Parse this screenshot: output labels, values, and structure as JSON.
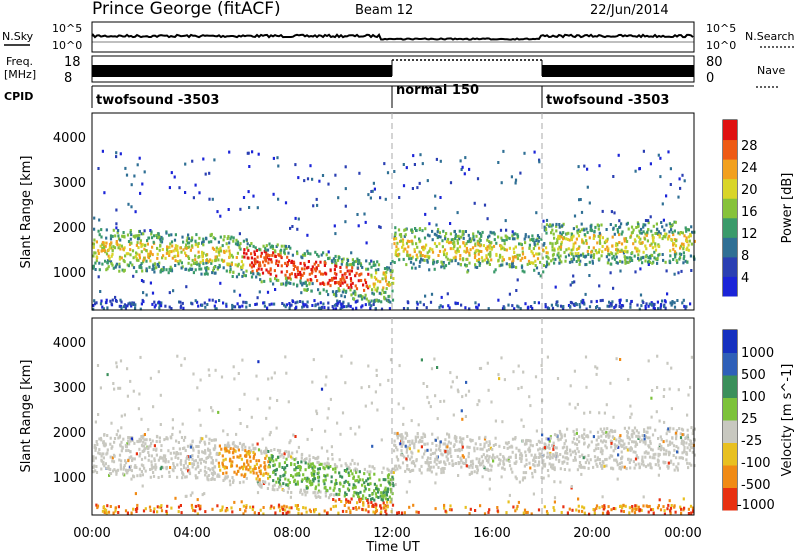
{
  "header": {
    "station": "Prince George (fitACF)",
    "beam": "Beam 12",
    "date": "22/Jun/2014"
  },
  "chart_data": [
    {
      "type": "line",
      "name": "noise-panel",
      "left_label": "N.Sky",
      "right_label": "N.Search",
      "left_ticks": [
        "10^5",
        "10^0"
      ],
      "right_ticks": [
        "10^5",
        "10^0"
      ]
    },
    {
      "type": "line",
      "name": "frequency-panel",
      "left_label_top": "Freq.",
      "left_label_unit": "[MHz]",
      "right_label": "Nave",
      "left_ticks": [
        "18",
        "8"
      ],
      "right_ticks": [
        "80",
        "0"
      ]
    },
    {
      "type": "table",
      "name": "cpid-panel",
      "label": "CPID",
      "segments": [
        {
          "start_hour": 0,
          "end_hour": 12,
          "text": "twofsound -3503"
        },
        {
          "start_hour": 12,
          "end_hour": 18,
          "text": "normal 150"
        },
        {
          "start_hour": 18,
          "end_hour": 24,
          "text": "twofsound -3503"
        }
      ]
    },
    {
      "type": "heatmap",
      "name": "power-panel",
      "ylabel": "Slant Range [km]",
      "ylim": [
        200,
        4500
      ],
      "yticks": [
        "1000",
        "2000",
        "3000",
        "4000"
      ],
      "colorbar_label": "Power [dB]",
      "colorbar_ticks": [
        "28",
        "24",
        "20",
        "16",
        "12",
        "8",
        "4"
      ],
      "colors": [
        "#1b24d8",
        "#2a3fb3",
        "#2f6f94",
        "#3a9a6a",
        "#86c23a",
        "#d9d528",
        "#f2a01e",
        "#ee5a14",
        "#e01010"
      ]
    },
    {
      "type": "heatmap",
      "name": "velocity-panel",
      "ylabel": "Slant Range [km]",
      "ylim": [
        200,
        4500
      ],
      "yticks": [
        "1000",
        "2000",
        "3000",
        "4000"
      ],
      "colorbar_label": "Velocity [m s^-1]",
      "colorbar_ticks": [
        "1000",
        "500",
        "100",
        "25",
        "-25",
        "-100",
        "-500",
        "-1000"
      ],
      "colors": [
        "#1530c0",
        "#2e5fb8",
        "#3a8f5a",
        "#7cc23a",
        "#c8c8c0",
        "#e8c020",
        "#f08a14",
        "#e83010"
      ]
    }
  ],
  "xaxis": {
    "label": "Time UT",
    "ticks": [
      "00:00",
      "04:00",
      "08:00",
      "12:00",
      "16:00",
      "20:00",
      "00:00"
    ]
  }
}
